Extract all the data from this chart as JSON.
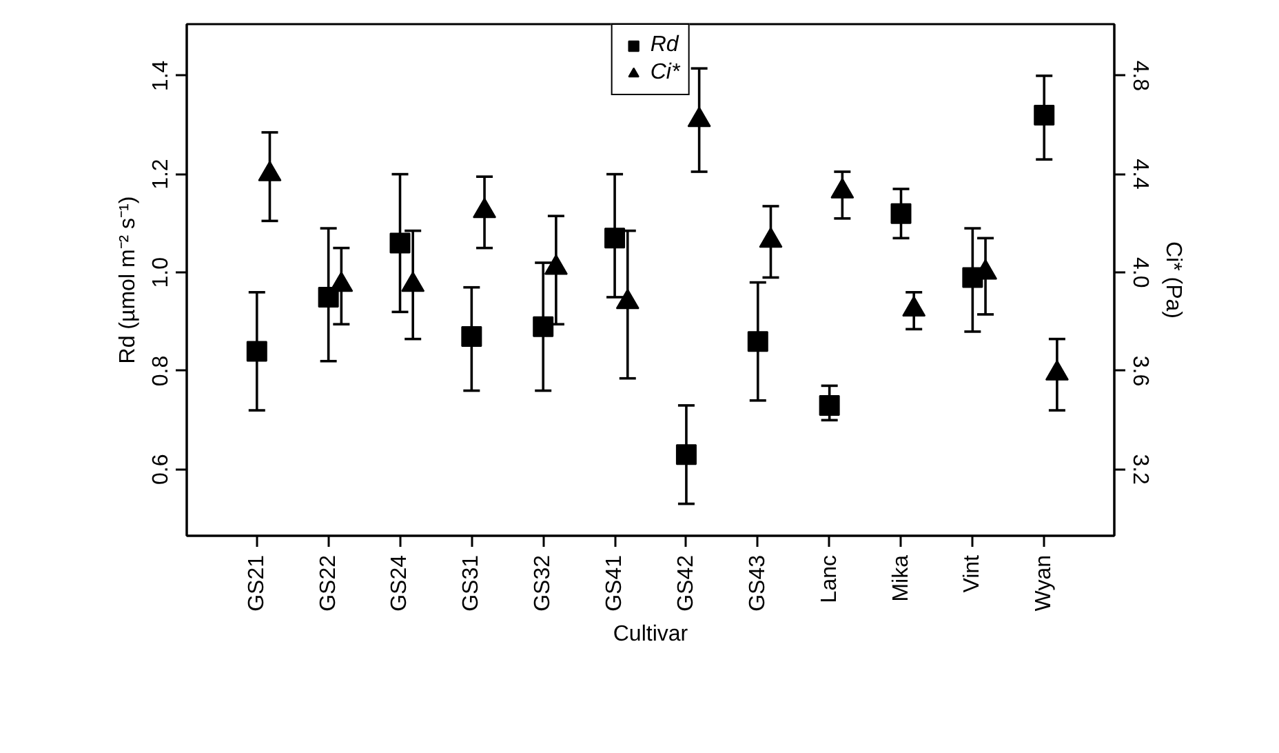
{
  "chart_data": {
    "type": "scatter",
    "xlabel": "Cultivar",
    "ylabel": "Rd (µmol m⁻² s⁻¹)",
    "y2label": "Ci* (Pa)",
    "categories": [
      "GS21",
      "GS22",
      "GS24",
      "GS31",
      "GS32",
      "GS41",
      "GS42",
      "GS43",
      "Lanc",
      "Mika",
      "Vint",
      "Wyan"
    ],
    "series": [
      {
        "name": "Rd",
        "color": "#000000",
        "marker": "square",
        "values": [
          0.84,
          0.95,
          1.06,
          0.87,
          0.89,
          1.07,
          0.63,
          0.86,
          0.73,
          1.12,
          0.99,
          1.32
        ],
        "errors": [
          [
            0.72,
            0.96
          ],
          [
            0.82,
            1.09
          ],
          [
            0.92,
            1.2
          ],
          [
            0.76,
            0.97
          ],
          [
            0.76,
            1.02
          ],
          [
            0.95,
            1.2
          ],
          [
            0.53,
            0.73
          ],
          [
            0.74,
            0.98
          ],
          [
            0.7,
            0.77
          ],
          [
            1.07,
            1.17
          ],
          [
            0.88,
            1.09
          ],
          [
            1.23,
            1.4
          ]
        ]
      },
      {
        "name": "Ci*",
        "color": "#000000",
        "marker": "triangle",
        "axis": "y2",
        "values": [
          4.4,
          3.95,
          3.95,
          4.25,
          4.02,
          3.88,
          4.62,
          4.13,
          4.33,
          3.85,
          4.0,
          3.59
        ],
        "errors": [
          [
            4.21,
            4.57
          ],
          [
            3.79,
            4.1
          ],
          [
            3.73,
            4.17
          ],
          [
            4.1,
            4.39
          ],
          [
            3.79,
            4.23
          ],
          [
            3.57,
            4.17
          ],
          [
            4.41,
            4.83
          ],
          [
            3.98,
            4.27
          ],
          [
            4.22,
            4.41
          ],
          [
            3.77,
            3.92
          ],
          [
            3.83,
            4.14
          ],
          [
            3.44,
            3.73
          ]
        ]
      }
    ],
    "ylim": [
      0.465,
      1.505
    ],
    "yticks": [
      0.6,
      0.8,
      {
        "value": 1,
        "label": "1.0"
      },
      1.2,
      1.4
    ],
    "y2lim": [
      2.93,
      5.01
    ],
    "y2ticks": [
      3.2,
      3.6,
      {
        "value": 4,
        "label": "4.0"
      },
      4.4,
      4.8
    ],
    "grid": false,
    "legend": "top"
  }
}
